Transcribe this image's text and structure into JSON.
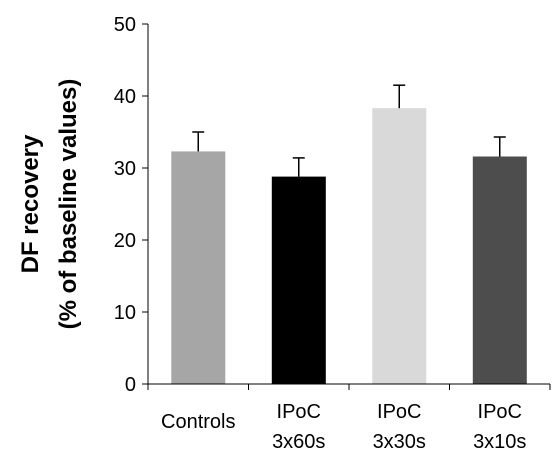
{
  "chart_data": {
    "type": "bar",
    "categories": [
      [
        "Controls"
      ],
      [
        "IPoC",
        "3x60s"
      ],
      [
        "IPoC",
        "3x30s"
      ],
      [
        "IPoC",
        "3x10s"
      ]
    ],
    "values": [
      32.3,
      28.8,
      38.3,
      31.6
    ],
    "errors": [
      2.7,
      2.6,
      3.2,
      2.7
    ],
    "colors": [
      "#a6a6a6",
      "#000000",
      "#d9d9d9",
      "#4d4d4d"
    ],
    "ylabel_lines": [
      "DF recovery",
      "(% of baseline values)"
    ],
    "ylim": [
      0,
      50
    ],
    "yticks": [
      0,
      10,
      20,
      30,
      40,
      50
    ],
    "error_bars": "one-sided (upper)",
    "grid": false,
    "legend": "none"
  }
}
